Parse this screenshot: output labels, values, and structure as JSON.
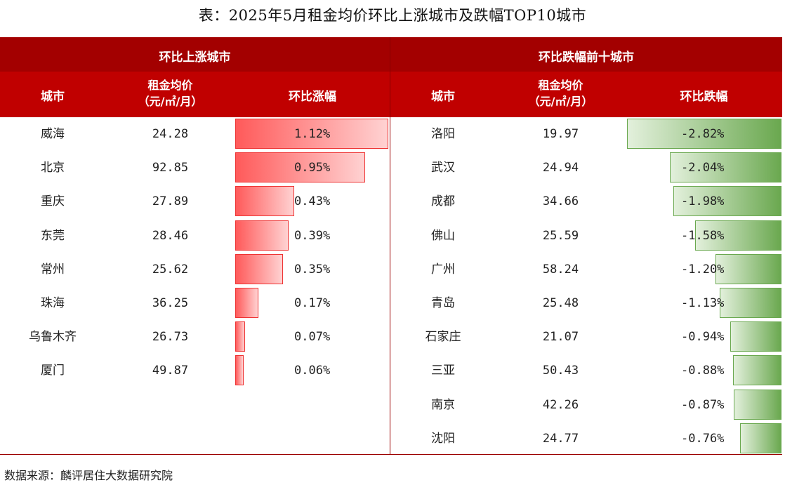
{
  "title": "表：2025年5月租金均价环比上涨城市及跌幅TOP10城市",
  "left_table": {
    "group_header": "环比上涨城市",
    "columns": {
      "city": "城市",
      "price_line1": "租金均价",
      "price_line2": "（元/㎡/月）",
      "change": "环比涨幅"
    },
    "rows": [
      {
        "city": "威海",
        "price": "24.28",
        "change_label": "1.12%",
        "change": 1.12
      },
      {
        "city": "北京",
        "price": "92.85",
        "change_label": "0.95%",
        "change": 0.95
      },
      {
        "city": "重庆",
        "price": "27.89",
        "change_label": "0.43%",
        "change": 0.43
      },
      {
        "city": "东莞",
        "price": "28.46",
        "change_label": "0.39%",
        "change": 0.39
      },
      {
        "city": "常州",
        "price": "25.62",
        "change_label": "0.35%",
        "change": 0.35
      },
      {
        "city": "珠海",
        "price": "36.25",
        "change_label": "0.17%",
        "change": 0.17
      },
      {
        "city": "乌鲁木齐",
        "price": "26.73",
        "change_label": "0.07%",
        "change": 0.07
      },
      {
        "city": "厦门",
        "price": "49.87",
        "change_label": "0.06%",
        "change": 0.06
      }
    ]
  },
  "right_table": {
    "group_header": "环比跌幅前十城市",
    "columns": {
      "city": "城市",
      "price_line1": "租金均价",
      "price_line2": "（元/㎡/月）",
      "change": "环比跌幅"
    },
    "rows": [
      {
        "city": "洛阳",
        "price": "19.97",
        "change_label": "-2.82%",
        "change": -2.82
      },
      {
        "city": "武汉",
        "price": "24.94",
        "change_label": "-2.04%",
        "change": -2.04
      },
      {
        "city": "成都",
        "price": "34.66",
        "change_label": "-1.98%",
        "change": -1.98
      },
      {
        "city": "佛山",
        "price": "25.59",
        "change_label": "-1.58%",
        "change": -1.58
      },
      {
        "city": "广州",
        "price": "58.24",
        "change_label": "-1.20%",
        "change": -1.2
      },
      {
        "city": "青岛",
        "price": "25.48",
        "change_label": "-1.13%",
        "change": -1.13
      },
      {
        "city": "石家庄",
        "price": "21.07",
        "change_label": "-0.94%",
        "change": -0.94
      },
      {
        "city": "三亚",
        "price": "50.43",
        "change_label": "-0.88%",
        "change": -0.88
      },
      {
        "city": "南京",
        "price": "42.26",
        "change_label": "-0.87%",
        "change": -0.87
      },
      {
        "city": "沈阳",
        "price": "24.77",
        "change_label": "-0.76%",
        "change": -0.76
      }
    ]
  },
  "colors": {
    "header_dark": "#a30000",
    "header_red": "#c00000",
    "bar_up": "#ff5a5a",
    "bar_down": "#6aa84f"
  },
  "source": "数据来源：麟评居住大数据研究院"
}
